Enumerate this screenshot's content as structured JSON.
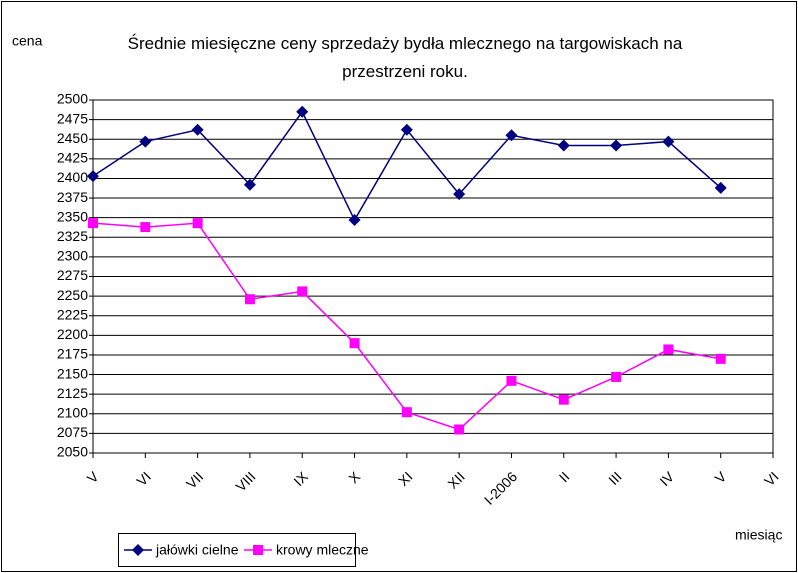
{
  "chart_data": {
    "type": "line",
    "title": "Średnie miesięczne ceny sprzedaży bydła mlecznego na targowiskach na przestrzeni roku.",
    "y_label": "cena",
    "x_label": "miesiąc",
    "categories": [
      "V",
      "VI",
      "VII",
      "VIII",
      "IX",
      "X",
      "XI",
      "XII",
      "I-2006",
      "II",
      "III",
      "IV",
      "V",
      "VI"
    ],
    "series": [
      {
        "name": "jałówki cielne",
        "color": "#000080",
        "marker": "diamond",
        "values": [
          2403,
          2447,
          2462,
          2392,
          2485,
          2347,
          2462,
          2380,
          2455,
          2442,
          2442,
          2447,
          2388,
          null
        ]
      },
      {
        "name": "krowy mleczne",
        "color": "#ff00ff",
        "marker": "square",
        "values": [
          2343,
          2338,
          2343,
          2246,
          2256,
          2190,
          2102,
          2080,
          2142,
          2118,
          2147,
          2182,
          2170,
          null
        ]
      }
    ],
    "ylim": [
      2050,
      2500
    ],
    "yticks": [
      2050,
      2075,
      2100,
      2125,
      2150,
      2175,
      2200,
      2225,
      2250,
      2275,
      2300,
      2325,
      2350,
      2375,
      2400,
      2425,
      2450,
      2475,
      2500
    ],
    "grid": true,
    "legend": "bottom-left"
  }
}
